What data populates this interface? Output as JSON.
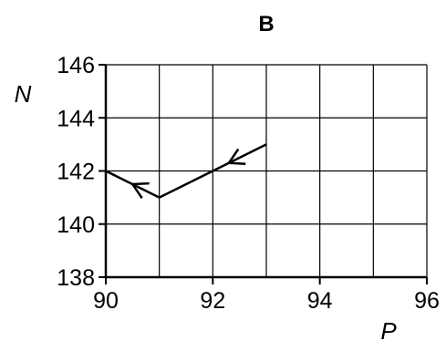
{
  "chart_data": {
    "type": "line",
    "title": "B",
    "xlabel": "P",
    "ylabel": "N",
    "xlim": [
      90,
      96
    ],
    "ylim": [
      138,
      146
    ],
    "x_ticks": [
      90,
      92,
      94,
      96
    ],
    "y_ticks": [
      138,
      140,
      142,
      144,
      146
    ],
    "grid": true,
    "x_grid_step": 1,
    "y_grid_step": 2,
    "series": [
      {
        "points": [
          {
            "x": 93,
            "y": 143
          },
          {
            "x": 92,
            "y": 142
          },
          {
            "x": 91,
            "y": 141
          },
          {
            "x": 90,
            "y": 142
          }
        ],
        "arrows_at": [
          {
            "x": 92.3,
            "y": 142.3
          },
          {
            "x": 90.5,
            "y": 141.5
          }
        ],
        "color": "#000000"
      }
    ]
  }
}
